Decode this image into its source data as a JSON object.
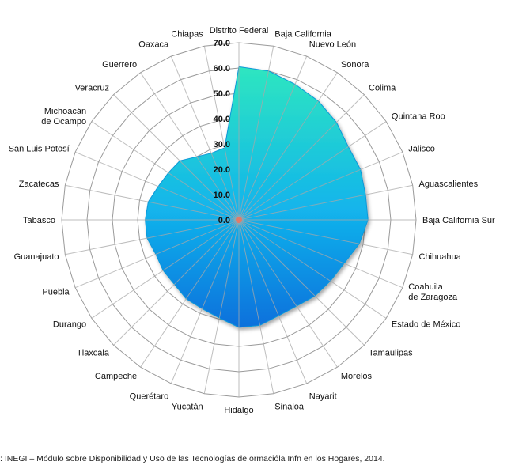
{
  "chart_data": {
    "type": "radar",
    "categories": [
      "Distrito Federal",
      "Baja California",
      "Nuevo León",
      "Sonora",
      "Colima",
      "Quintana Roo",
      "Jalisco",
      "Aguascalientes",
      "Baja California Sur",
      "Chihuahua",
      "Coahuila\nde Zaragoza",
      "Estado de México",
      "Tamaulipas",
      "Morelos",
      "Nayarit",
      "Sinaloa",
      "Hidalgo",
      "Yucatán",
      "Querétaro",
      "Campeche",
      "Tlaxcala",
      "Durango",
      "Puebla",
      "Guanajuato",
      "Tabasco",
      "Zacatecas",
      "San Luis Potosí",
      "Michoacán\nde Ocampo",
      "Veracruz",
      "Guerrero",
      "Oaxaca",
      "Chiapas"
    ],
    "series": [
      {
        "values": [
          60.5,
          60.0,
          58.0,
          56.5,
          54.5,
          52.0,
          52.0,
          51.0,
          51.0,
          48.5,
          45.0,
          43.5,
          42.5,
          41.0,
          41.0,
          42.5,
          42.5,
          39.5,
          38.0,
          37.5,
          36.0,
          36.0,
          35.5,
          37.0,
          37.0,
          36.5,
          34.5,
          33.5,
          33.0,
          30.0,
          28.5,
          29.0
        ]
      }
    ],
    "ticks": [
      "0.0",
      "10.0",
      "20.0",
      "30.0",
      "40.0",
      "50.0",
      "60.0",
      "70.0"
    ],
    "range": [
      0,
      70
    ],
    "grid": true,
    "colors": {
      "fill_top": "#2ee6c0",
      "fill_bottom": "#0a7fe6",
      "grid": "#9a9a9a",
      "axis": "#a8a8a8"
    }
  },
  "source_text": ": INEGI – Módulo sobre Disponibilidad y Uso de las Tecnologías de ormaciόla Infn en los Hogares, 2014."
}
